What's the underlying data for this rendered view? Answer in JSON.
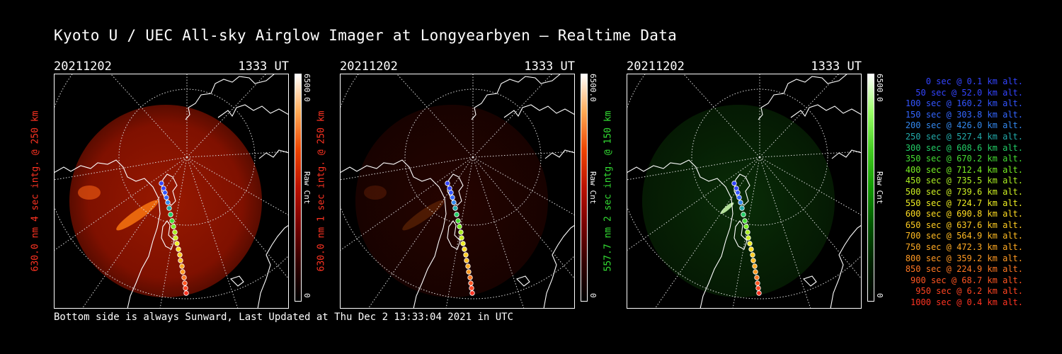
{
  "header": {
    "title": "Kyoto U / UEC All-sky Airglow Imager at Longyearbyen — Realtime Data"
  },
  "footer": {
    "text": "Bottom side is always Sunward, Last Updated at Thu Dec  2 13:33:04 2021 in UTC"
  },
  "panels": [
    {
      "date": "20211202",
      "time": "1333 UT",
      "ylabel": "630.0 nm 4 sec intg. @ 250 km",
      "label_color": "#ff3322",
      "cbar_max": "6500.0",
      "cbar_min": "0",
      "cbar_unit": "Raw Cnt",
      "colormap": "red",
      "intensity": "bright"
    },
    {
      "date": "20211202",
      "time": "1333 UT",
      "ylabel": "630.0 nm 1 sec intg. @ 250 km",
      "label_color": "#ff3322",
      "cbar_max": "6500.0",
      "cbar_min": "0",
      "cbar_unit": "Raw Cnt",
      "colormap": "red",
      "intensity": "dim"
    },
    {
      "date": "20211202",
      "time": "1333 UT",
      "ylabel": "557.7 nm 2 sec intg. @ 150 km",
      "label_color": "#33dd33",
      "cbar_max": "6500.0",
      "cbar_min": "0",
      "cbar_unit": "Raw Cnt",
      "colormap": "green",
      "intensity": "dim"
    }
  ],
  "trajectory_legend": [
    {
      "text": "0 sec @   0.1 km alt.",
      "color": "#3344ff"
    },
    {
      "text": "50 sec @  52.0 km alt.",
      "color": "#3344ff"
    },
    {
      "text": "100 sec @ 160.2 km alt.",
      "color": "#3355ff"
    },
    {
      "text": "150 sec @ 303.8 km alt.",
      "color": "#3366ff"
    },
    {
      "text": "200 sec @ 426.0 km alt.",
      "color": "#3388ee"
    },
    {
      "text": "250 sec @ 527.4 km alt.",
      "color": "#22aaaa"
    },
    {
      "text": "300 sec @ 608.6 km alt.",
      "color": "#22cc66"
    },
    {
      "text": "350 sec @ 670.2 km alt.",
      "color": "#44dd33"
    },
    {
      "text": "400 sec @ 712.4 km alt.",
      "color": "#77ee22"
    },
    {
      "text": "450 sec @ 735.5 km alt.",
      "color": "#aaee22"
    },
    {
      "text": "500 sec @ 739.6 km alt.",
      "color": "#ccee22"
    },
    {
      "text": "550 sec @ 724.7 km alt.",
      "color": "#eeee22"
    },
    {
      "text": "600 sec @ 690.8 km alt.",
      "color": "#ffdd22"
    },
    {
      "text": "650 sec @ 637.6 km alt.",
      "color": "#ffcc22"
    },
    {
      "text": "700 sec @ 564.9 km alt.",
      "color": "#ffbb22"
    },
    {
      "text": "750 sec @ 472.3 km alt.",
      "color": "#ffaa22"
    },
    {
      "text": "800 sec @ 359.2 km alt.",
      "color": "#ff9922"
    },
    {
      "text": "850 sec @ 224.9 km alt.",
      "color": "#ff7722"
    },
    {
      "text": "900 sec @  68.7 km alt.",
      "color": "#ff5522"
    },
    {
      "text": "950 sec @   6.2 km alt.",
      "color": "#ff4422"
    },
    {
      "text": "1000 sec @   0.4 km alt.",
      "color": "#ff3322"
    }
  ]
}
